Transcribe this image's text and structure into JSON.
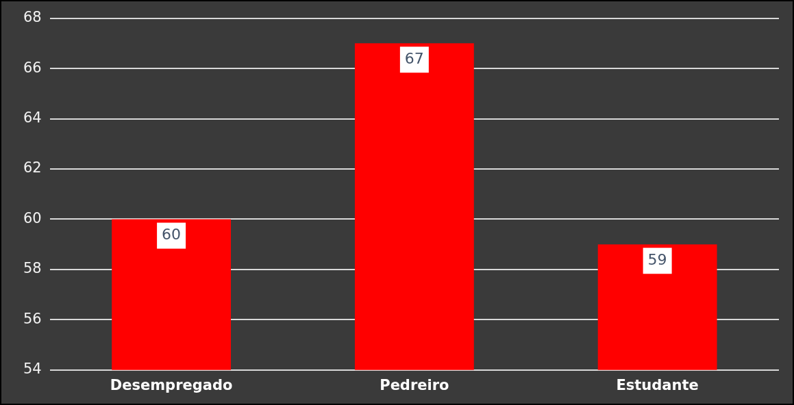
{
  "chart_data": {
    "type": "bar",
    "categories": [
      "Desempregado",
      "Pedreiro",
      "Estudante"
    ],
    "values": [
      60,
      67,
      59
    ],
    "color": "#ff0000",
    "ylim": [
      54,
      68
    ],
    "yticks": [
      54,
      56,
      58,
      60,
      62,
      64,
      66,
      68
    ],
    "grid": "y",
    "data_labels": true
  }
}
